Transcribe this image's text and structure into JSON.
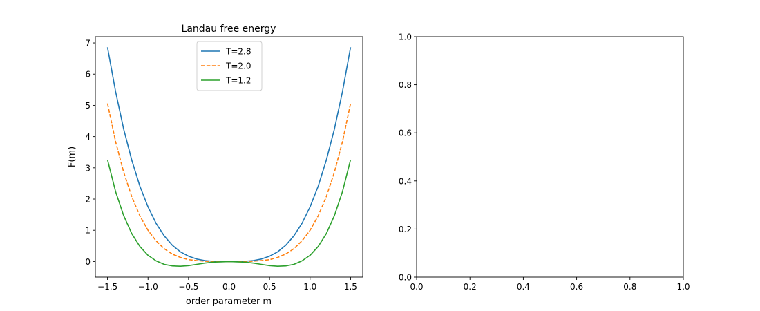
{
  "chart_data": [
    {
      "type": "line",
      "title": "Landau free energy",
      "xlabel": "order parameter m",
      "ylabel": "F(m)",
      "xlim": [
        -1.65,
        1.65
      ],
      "ylim": [
        -0.5,
        7.2
      ],
      "xticks": [
        -1.5,
        -1.0,
        -0.5,
        0.0,
        0.5,
        1.0,
        1.5
      ],
      "xtick_labels": [
        "−1.5",
        "−1.0",
        "−0.5",
        "0.0",
        "0.5",
        "1.0",
        "1.5"
      ],
      "yticks": [
        0,
        1,
        2,
        3,
        4,
        5,
        6,
        7
      ],
      "ytick_labels": [
        "0",
        "1",
        "2",
        "3",
        "4",
        "5",
        "6",
        "7"
      ],
      "grid": false,
      "legend_position": "upper center",
      "x": [
        -1.5,
        -1.4,
        -1.3,
        -1.2,
        -1.1,
        -1.0,
        -0.9,
        -0.8,
        -0.7,
        -0.6,
        -0.5,
        -0.4,
        -0.3,
        -0.2,
        -0.1,
        0.0,
        0.1,
        0.2,
        0.3,
        0.4,
        0.5,
        0.6,
        0.7,
        0.8,
        0.9,
        1.0,
        1.1,
        1.2,
        1.3,
        1.4,
        1.5
      ],
      "series": [
        {
          "name": "T=2.8",
          "color": "#1f77b4",
          "dash": "solid",
          "values": [
            6.86,
            5.44,
            4.24,
            3.24,
            2.41,
            1.75,
            1.22,
            0.82,
            0.52,
            0.31,
            0.17,
            0.08,
            0.03,
            0.01,
            0.0,
            0.0,
            0.0,
            0.01,
            0.03,
            0.08,
            0.17,
            0.31,
            0.52,
            0.82,
            1.22,
            1.75,
            2.41,
            3.24,
            4.24,
            5.44,
            6.86
          ]
        },
        {
          "name": "T=2.0",
          "color": "#ff7f0e",
          "dash": "dashed",
          "values": [
            5.06,
            3.84,
            2.86,
            2.07,
            1.46,
            1.0,
            0.66,
            0.41,
            0.24,
            0.13,
            0.06,
            0.03,
            0.01,
            0.0,
            0.0,
            0.0,
            0.0,
            0.0,
            0.01,
            0.03,
            0.06,
            0.13,
            0.24,
            0.41,
            0.66,
            1.0,
            1.46,
            2.07,
            2.86,
            3.84,
            5.06
          ]
        },
        {
          "name": "T=1.2",
          "color": "#2ca02c",
          "dash": "solid",
          "values": [
            3.26,
            2.24,
            1.47,
            0.89,
            0.48,
            0.2,
            0.02,
            -0.09,
            -0.14,
            -0.15,
            -0.13,
            -0.09,
            -0.05,
            -0.02,
            -0.01,
            0.0,
            -0.01,
            -0.02,
            -0.05,
            -0.09,
            -0.13,
            -0.15,
            -0.14,
            -0.09,
            0.02,
            0.2,
            0.48,
            0.89,
            1.47,
            2.24,
            3.26
          ]
        }
      ]
    },
    {
      "type": "line",
      "title": "",
      "xlabel": "",
      "ylabel": "",
      "xlim": [
        0,
        1
      ],
      "ylim": [
        0,
        1
      ],
      "xticks": [
        0.0,
        0.2,
        0.4,
        0.6,
        0.8,
        1.0
      ],
      "xtick_labels": [
        "0.0",
        "0.2",
        "0.4",
        "0.6",
        "0.8",
        "1.0"
      ],
      "yticks": [
        0.0,
        0.2,
        0.4,
        0.6,
        0.8,
        1.0
      ],
      "ytick_labels": [
        "0.0",
        "0.2",
        "0.4",
        "0.6",
        "0.8",
        "1.0"
      ],
      "grid": false,
      "series": []
    }
  ]
}
